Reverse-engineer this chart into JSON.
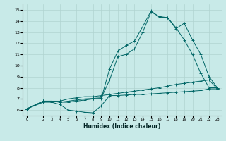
{
  "xlabel": "Humidex (Indice chaleur)",
  "background_color": "#c8eae8",
  "grid_color": "#b0d4d0",
  "line_color": "#006666",
  "xlim": [
    -0.5,
    23.5
  ],
  "ylim": [
    5.5,
    15.5
  ],
  "xticks": [
    0,
    2,
    3,
    4,
    5,
    6,
    7,
    8,
    9,
    10,
    11,
    12,
    13,
    14,
    15,
    16,
    17,
    18,
    19,
    20,
    21,
    22,
    23
  ],
  "yticks": [
    6,
    7,
    8,
    9,
    10,
    11,
    12,
    13,
    14,
    15
  ],
  "series": [
    {
      "x": [
        0,
        2,
        3,
        4,
        5,
        6,
        7,
        8,
        9,
        10,
        11,
        12,
        13,
        14,
        15,
        16,
        17,
        18,
        19,
        20,
        21,
        22,
        23
      ],
      "y": [
        6.1,
        6.7,
        6.7,
        6.5,
        6.0,
        5.9,
        5.8,
        5.75,
        6.4,
        7.3,
        7.3,
        7.35,
        7.4,
        7.4,
        7.45,
        7.5,
        7.55,
        7.6,
        7.65,
        7.7,
        7.75,
        7.9,
        7.9
      ]
    },
    {
      "x": [
        0,
        2,
        3,
        4,
        5,
        6,
        7,
        8,
        9,
        10,
        11,
        12,
        13,
        14,
        15,
        16,
        17,
        18,
        19,
        20,
        21,
        22,
        23
      ],
      "y": [
        6.1,
        6.8,
        6.8,
        6.8,
        7.0,
        7.1,
        7.2,
        7.2,
        7.3,
        7.4,
        7.5,
        7.6,
        7.7,
        7.8,
        7.9,
        8.0,
        8.15,
        8.3,
        8.4,
        8.5,
        8.6,
        8.7,
        7.9
      ]
    },
    {
      "x": [
        0,
        2,
        3,
        4,
        5,
        6,
        7,
        8,
        9,
        10,
        11,
        12,
        13,
        14,
        15,
        16,
        17,
        18,
        19,
        20,
        21,
        22,
        23
      ],
      "y": [
        6.1,
        6.8,
        6.8,
        6.7,
        6.8,
        6.9,
        7.0,
        7.05,
        7.1,
        8.7,
        10.8,
        11.0,
        11.5,
        13.0,
        14.8,
        14.4,
        14.3,
        13.3,
        13.8,
        12.3,
        11.0,
        9.0,
        8.0
      ]
    },
    {
      "x": [
        0,
        2,
        3,
        4,
        5,
        6,
        7,
        8,
        9,
        10,
        11,
        12,
        13,
        14,
        15,
        16,
        17,
        18,
        19,
        20,
        21,
        22,
        23
      ],
      "y": [
        6.1,
        6.8,
        6.8,
        6.7,
        6.7,
        6.8,
        6.9,
        7.0,
        7.05,
        9.7,
        11.3,
        11.8,
        12.2,
        13.5,
        14.9,
        14.35,
        14.3,
        13.4,
        12.3,
        11.0,
        9.3,
        8.0,
        8.0
      ]
    }
  ]
}
